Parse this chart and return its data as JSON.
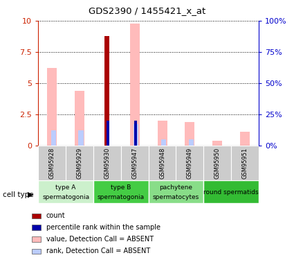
{
  "title": "GDS2390 / 1455421_x_at",
  "samples": [
    "GSM95928",
    "GSM95929",
    "GSM95930",
    "GSM95947",
    "GSM95948",
    "GSM95949",
    "GSM95950",
    "GSM95951"
  ],
  "count_values": [
    0,
    0,
    8.8,
    0,
    0,
    0,
    0,
    0
  ],
  "percentile_values": [
    0,
    0,
    20,
    20,
    0,
    0,
    0,
    0
  ],
  "value_absent": [
    6.2,
    4.4,
    0,
    9.8,
    2.0,
    1.9,
    0.4,
    1.1
  ],
  "rank_absent_pct": [
    12,
    12,
    0,
    17,
    5,
    5,
    0,
    0
  ],
  "cell_type_groups": [
    {
      "label": "type A\nspermatogonia",
      "start": 0,
      "end": 2,
      "color": "#ccf0cc"
    },
    {
      "label": "type B\nspermatogonia",
      "start": 2,
      "end": 4,
      "color": "#44cc44"
    },
    {
      "label": "pachytene\nspermatocytes",
      "start": 4,
      "end": 6,
      "color": "#88dd88"
    },
    {
      "label": "round spermatids",
      "start": 6,
      "end": 8,
      "color": "#33bb33"
    }
  ],
  "ylim_left": [
    0,
    10
  ],
  "ylim_right": [
    0,
    100
  ],
  "yticks_left": [
    0,
    2.5,
    5.0,
    7.5,
    10
  ],
  "ytick_labels_left": [
    "0",
    "2.5",
    "5",
    "7.5",
    "10"
  ],
  "yticks_right": [
    0,
    25,
    50,
    75,
    100
  ],
  "ytick_labels_right": [
    "0%",
    "25%",
    "50%",
    "75%",
    "100%"
  ],
  "left_axis_color": "#cc2200",
  "right_axis_color": "#0000cc",
  "count_color": "#aa0000",
  "percentile_color": "#0000aa",
  "value_absent_color": "#ffbbbb",
  "rank_absent_color": "#bbccff",
  "legend_items": [
    {
      "color": "#aa0000",
      "label": "count"
    },
    {
      "color": "#0000aa",
      "label": "percentile rank within the sample"
    },
    {
      "color": "#ffbbbb",
      "label": "value, Detection Call = ABSENT"
    },
    {
      "color": "#bbccff",
      "label": "rank, Detection Call = ABSENT"
    }
  ],
  "cell_type_label": "cell type",
  "sample_row_color": "#cccccc"
}
